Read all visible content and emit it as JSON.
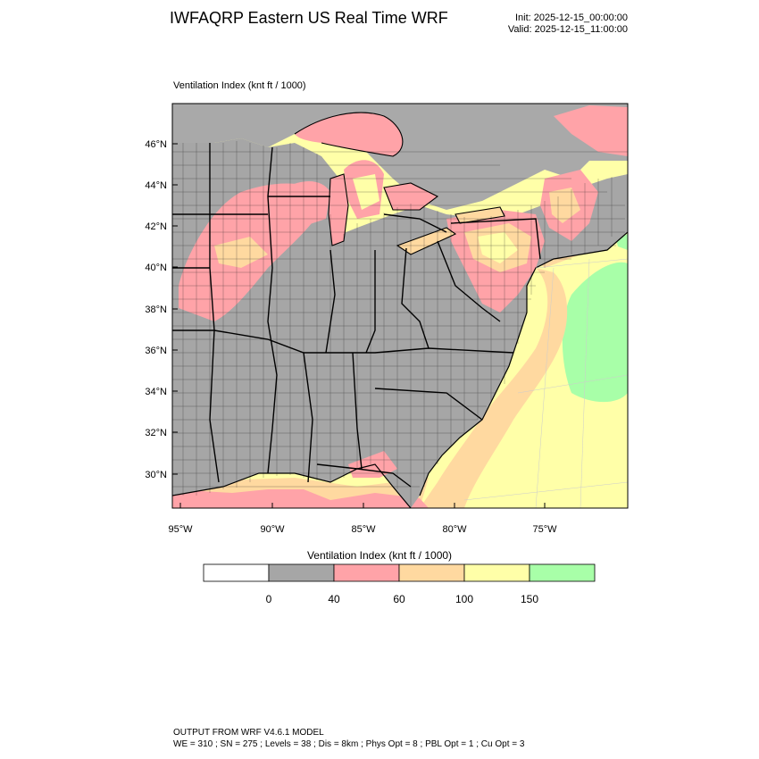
{
  "header": {
    "title": "IWFAQRP Eastern US Real Time WRF",
    "init": "Init: 2025-12-15_00:00:00",
    "valid": "Valid: 2025-12-15_11:00:00"
  },
  "field_label": "Ventilation Index   (knt ft / 1000)",
  "map": {
    "lat_labels": [
      "46°N",
      "44°N",
      "42°N",
      "40°N",
      "38°N",
      "36°N",
      "34°N",
      "32°N",
      "30°N"
    ],
    "lon_labels": [
      "95°W",
      "90°W",
      "85°W",
      "80°W",
      "75°W"
    ],
    "colors": {
      "land_gray": "#a6a6a6",
      "canada_gray": "#a9a9a9",
      "pink": "#ffa3a8",
      "orange": "#ffd9a0",
      "yellow": "#ffffa8",
      "green": "#a8ffa8"
    }
  },
  "colorbar": {
    "title": "Ventilation Index  (knt ft / 1000)",
    "colors": [
      "#ffffff",
      "#a6a6a6",
      "#ffa3a8",
      "#ffd9a0",
      "#ffffa8",
      "#a8ffa8"
    ],
    "labels": [
      "0",
      "40",
      "60",
      "100",
      "150"
    ]
  },
  "footer": {
    "line1": "OUTPUT FROM WRF V4.6.1 MODEL",
    "line2": "WE = 310 ; SN = 275 ; Levels = 38 ; Dis = 8km ; Phys Opt = 8 ; PBL Opt = 1 ; Cu Opt = 3"
  }
}
